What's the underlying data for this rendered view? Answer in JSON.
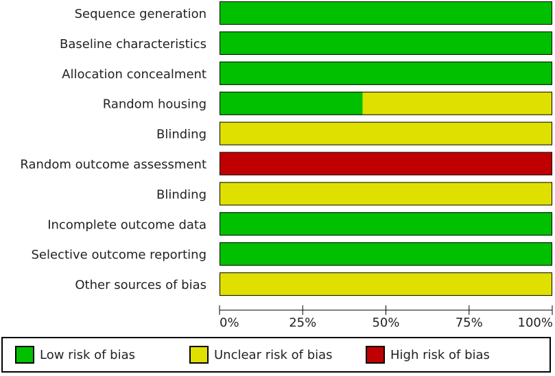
{
  "colors": {
    "low": "#00c000",
    "unclear": "#e0e000",
    "high": "#c00000"
  },
  "chart_data": {
    "type": "bar",
    "orientation": "horizontal",
    "stacked": true,
    "unit": "percent",
    "categories": [
      "Sequence generation",
      "Baseline characteristics",
      "Allocation concealment",
      "Random housing",
      "Blinding",
      "Random outcome assessment",
      "Blinding",
      "Incomplete outcome data",
      "Selective outcome reporting",
      "Other sources of bias"
    ],
    "series": [
      {
        "name": "Low risk of bias",
        "key": "low",
        "values": [
          100,
          100,
          100,
          43,
          0,
          0,
          0,
          100,
          100,
          0
        ]
      },
      {
        "name": "Unclear risk of bias",
        "key": "unclear",
        "values": [
          0,
          0,
          0,
          57,
          100,
          0,
          100,
          0,
          0,
          100
        ]
      },
      {
        "name": "High risk of bias",
        "key": "high",
        "values": [
          0,
          0,
          0,
          0,
          0,
          100,
          0,
          0,
          0,
          0
        ]
      }
    ],
    "xlim": [
      0,
      100
    ],
    "xticks": [
      0,
      25,
      50,
      75,
      100
    ],
    "xtick_labels": [
      "0%",
      "25%",
      "50%",
      "75%",
      "100%"
    ],
    "title": "",
    "xlabel": "",
    "ylabel": "",
    "legend_position": "bottom"
  }
}
